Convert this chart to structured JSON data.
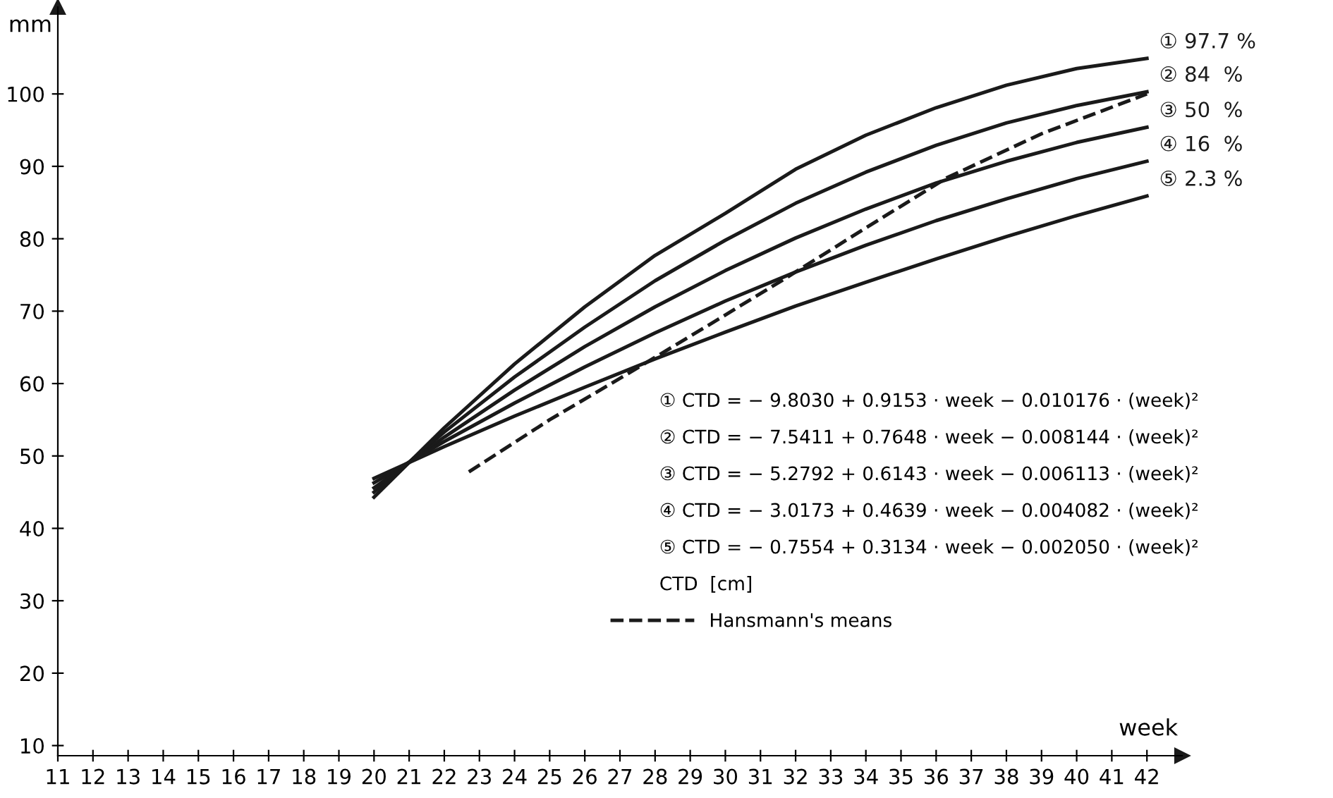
{
  "chart_data": {
    "type": "line",
    "xlabel": "week",
    "ylabel": "mm",
    "xlim": [
      11,
      43
    ],
    "ylim": [
      8.6,
      112
    ],
    "xticks": [
      11,
      12,
      13,
      14,
      15,
      16,
      17,
      18,
      19,
      20,
      21,
      22,
      23,
      24,
      25,
      26,
      27,
      28,
      29,
      30,
      31,
      32,
      33,
      34,
      35,
      36,
      37,
      38,
      39,
      40,
      41,
      42
    ],
    "yticks": [
      10,
      20,
      30,
      40,
      50,
      60,
      70,
      80,
      90,
      100
    ],
    "grid": false,
    "legend": "right",
    "marker": "none",
    "annotations": [
      "① CTD = − 9.8030 + 0.9153 · week − 0.010176 · (week)²",
      "② CTD = − 7.5411 + 0.7648 · week − 0.008144 · (week)²",
      "③ CTD = − 5.2792 + 0.6143 · week − 0.006113 · (week)²",
      "④ CTD = − 3.0173 + 0.4639 · week − 0.004082 · (week)²",
      "⑤ CTD = − 0.7554 + 0.3134 · week − 0.002050 · (week)²",
      "CTD  [cm]"
    ],
    "x": [
      20,
      22,
      24,
      26,
      28,
      30,
      32,
      34,
      36,
      38,
      40,
      42
    ],
    "series": [
      {
        "name": "① 97.7 %",
        "color": "#1a1a1a",
        "line_style": "solid",
        "values": [
          44.3,
          53.9,
          62.7,
          70.6,
          77.7,
          83.5,
          89.6,
          94.3,
          98.1,
          101.2,
          103.5,
          104.9
        ]
      },
      {
        "name": "② 84  %",
        "color": "#1a1a1a",
        "line_style": "solid",
        "values": [
          45.0,
          53.3,
          60.9,
          67.8,
          74.2,
          79.8,
          84.9,
          89.2,
          92.9,
          96.0,
          98.4,
          100.3
        ]
      },
      {
        "name": "③ 50  %",
        "color": "#1a1a1a",
        "line_style": "solid",
        "values": [
          45.6,
          52.6,
          59.1,
          65.1,
          70.6,
          75.6,
          80.1,
          84.1,
          87.7,
          90.7,
          93.3,
          95.4
        ]
      },
      {
        "name": "④ 16  %",
        "color": "#1a1a1a",
        "line_style": "solid",
        "values": [
          46.3,
          52.0,
          57.3,
          62.3,
          67.0,
          71.4,
          75.4,
          79.1,
          82.5,
          85.5,
          88.3,
          90.7
        ]
      },
      {
        "name": "⑤ 2.3 %",
        "color": "#1a1a1a",
        "line_style": "solid",
        "values": [
          46.9,
          51.3,
          55.5,
          59.5,
          63.4,
          67.1,
          70.7,
          74.0,
          77.2,
          80.3,
          83.2,
          85.9
        ]
      },
      {
        "name": "Hansmann's means",
        "color": "#1a1a1a",
        "line_style": "dashed",
        "x": [
          22.7,
          25,
          27.1,
          29.5,
          31.7,
          34,
          36.3,
          39,
          42
        ],
        "values": [
          47.8,
          55,
          61,
          68,
          74.5,
          81.5,
          88.4,
          94.5,
          100
        ]
      }
    ]
  }
}
